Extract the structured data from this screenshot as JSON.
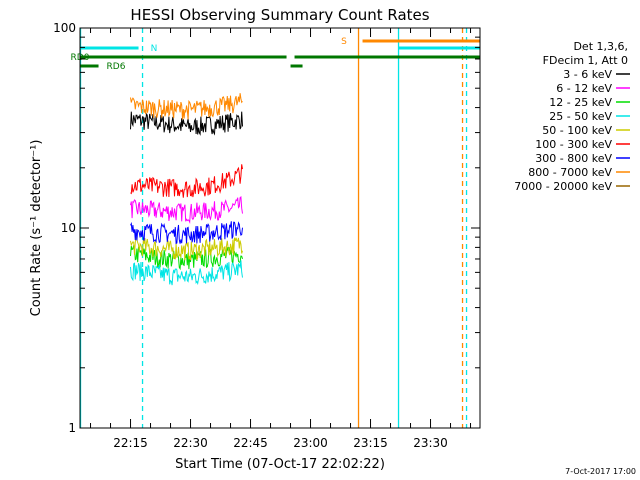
{
  "chart_data": {
    "type": "line",
    "title": "HESSI Observing Summary Count Rates",
    "xlabel": "Start Time (07-Oct-17 22:02:22)",
    "ylabel": "Count Rate (s⁻¹ detector⁻¹)",
    "y_scale": "log",
    "ylim": [
      1,
      100
    ],
    "xlim": [
      "22:02:22",
      "23:42:22"
    ],
    "y_tick_labels": [
      "1",
      "10",
      "100"
    ],
    "x_tick_labels": [
      "22:15",
      "22:30",
      "22:45",
      "23:00",
      "23:15",
      "23:30"
    ],
    "legend_header": [
      "Det 1,3,6,",
      "FDecim 1, Att 0"
    ],
    "legend_position": "right",
    "grid": false,
    "series": [
      {
        "name": "3 - 6 keV",
        "color": "#000000",
        "x": [
          "22:15",
          "22:20",
          "22:25",
          "22:30",
          "22:35",
          "22:40",
          "22:43"
        ],
        "values": [
          35,
          34,
          33,
          32,
          33,
          34,
          35
        ]
      },
      {
        "name": "6 - 12 keV",
        "color": "#ff00ff",
        "x": [
          "22:15",
          "22:20",
          "22:25",
          "22:30",
          "22:35",
          "22:40",
          "22:43"
        ],
        "values": [
          12.5,
          12.3,
          12.1,
          12,
          12.2,
          12.5,
          13
        ]
      },
      {
        "name": "12 - 25 keV",
        "color": "#00dd00",
        "x": [
          "22:15",
          "22:20",
          "22:25",
          "22:30",
          "22:35",
          "22:40",
          "22:43"
        ],
        "values": [
          7.5,
          7.2,
          7,
          6.9,
          7.1,
          7.3,
          7.5
        ]
      },
      {
        "name": "25 - 50 keV",
        "color": "#00e5e5",
        "x": [
          "22:15",
          "22:20",
          "22:25",
          "22:30",
          "22:35",
          "22:40",
          "22:43"
        ],
        "values": [
          6.2,
          6,
          5.8,
          5.7,
          5.9,
          6.1,
          6.3
        ]
      },
      {
        "name": "50 - 100 keV",
        "color": "#cccc00",
        "x": [
          "22:15",
          "22:20",
          "22:25",
          "22:30",
          "22:35",
          "22:40",
          "22:43"
        ],
        "values": [
          8.2,
          8,
          7.8,
          7.7,
          7.9,
          8.1,
          8.4
        ]
      },
      {
        "name": "100 - 300 keV",
        "color": "#ff0000",
        "x": [
          "22:15",
          "22:20",
          "22:25",
          "22:30",
          "22:35",
          "22:40",
          "22:43"
        ],
        "values": [
          16.5,
          16.2,
          16,
          15.8,
          16.3,
          17.5,
          19
        ]
      },
      {
        "name": "300 - 800 keV",
        "color": "#0000ff",
        "x": [
          "22:15",
          "22:20",
          "22:25",
          "22:30",
          "22:35",
          "22:40",
          "22:43"
        ],
        "values": [
          9.8,
          9.6,
          9.4,
          9.3,
          9.5,
          9.8,
          10.2
        ]
      },
      {
        "name": "800 - 7000 keV",
        "color": "#ff8800",
        "x": [
          "22:15",
          "22:20",
          "22:25",
          "22:30",
          "22:35",
          "22:40",
          "22:43"
        ],
        "values": [
          41,
          40,
          39.5,
          39,
          40,
          41.5,
          43
        ]
      },
      {
        "name": "7000 - 20000 keV",
        "color": "#996600",
        "x": [],
        "values": []
      }
    ],
    "flag_bars": [
      {
        "label": "N",
        "color": "#00e5e5",
        "segments": [
          [
            "22:02:22",
            "22:17"
          ],
          [
            "23:22",
            "23:42:22"
          ]
        ]
      },
      {
        "label": "RD0",
        "color": "#007700",
        "segments": [
          [
            "22:02:22",
            "22:54"
          ],
          [
            "22:56",
            "23:42:22"
          ]
        ]
      },
      {
        "label": "RD6",
        "color": "#007700",
        "segments": [
          [
            "22:02:22",
            "22:07"
          ],
          [
            "22:55",
            "22:58"
          ]
        ]
      },
      {
        "label": "S",
        "color": "#ff8800",
        "segments": [
          [
            "23:13",
            "23:42:22"
          ]
        ]
      }
    ],
    "vertical_markers": [
      {
        "x": "22:02:30",
        "color": "#00e5e5",
        "style": "solid"
      },
      {
        "x": "22:18",
        "color": "#00e5e5",
        "style": "dashed"
      },
      {
        "x": "23:12",
        "color": "#ff8800",
        "style": "solid"
      },
      {
        "x": "23:22",
        "color": "#00e5e5",
        "style": "solid"
      },
      {
        "x": "23:38",
        "color": "#ff8800",
        "style": "dashed"
      },
      {
        "x": "23:39",
        "color": "#00e5e5",
        "style": "dashed"
      }
    ]
  },
  "footer_stamp": "7-Oct-2017 17:00"
}
